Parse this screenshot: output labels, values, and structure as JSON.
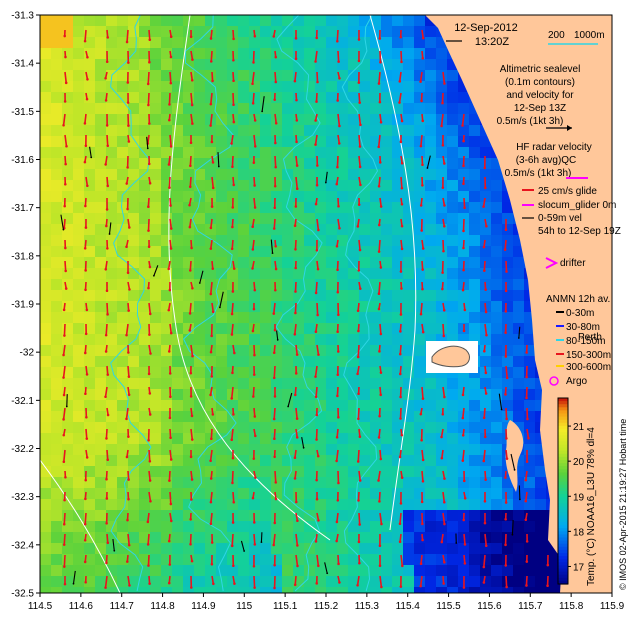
{
  "map": {
    "date": "12-Sep-2012",
    "time": "13:20Z",
    "scale_label": "200",
    "scale_depth_label": "1000m",
    "x_ticks": [
      "114.5",
      "114.6",
      "114.7",
      "114.8",
      "114.9",
      "115",
      "115.1",
      "115.2",
      "115.3",
      "115.4",
      "115.5",
      "115.6",
      "115.7",
      "115.8",
      "115.9"
    ],
    "y_ticks": [
      "-31.3",
      "-31.4",
      "-31.5",
      "-31.6",
      "-31.7",
      "-31.8",
      "-31.9",
      "-32",
      "-32.1",
      "-32.2",
      "-32.3",
      "-32.4",
      "-32.5"
    ],
    "place_label": "Perth",
    "credit": "© IMOS 02-Apr-2015 21:19:27 Hobart time"
  },
  "legend": {
    "altimetric": [
      "Altimetric sealevel",
      "(0.1m contours)",
      "and velocity for",
      "12-Sep 13Z",
      "0.5m/s (1kt 3h)"
    ],
    "hf_radar": [
      "HF radar velocity",
      "(3-6h avg)QC",
      "0.5m/s (1kt 3h)"
    ],
    "glider": [
      "25 cm/s glide",
      "slocum_glider 0m",
      "0-59m vel",
      "54h to 12-Sep 19Z"
    ],
    "drifter": "drifter",
    "anmn_title": "ANMN 12h av.",
    "anmn_depths": [
      "0-30m",
      "30-80m",
      "80-150m",
      "150-300m",
      "300-600m"
    ],
    "argo": "Argo"
  },
  "colorbar": {
    "label": "Temp. (°C) NOAA16_L3U 78% dl=4",
    "ticks": [
      "17",
      "18",
      "19",
      "20",
      "21"
    ],
    "min": 16.5,
    "max": 21.8
  },
  "colors": {
    "land": "#ffc79a",
    "hf_arrow": "#e8141e",
    "alt_arrow": "#000000",
    "contour": "#ffffff",
    "bathy": "#2fd6e6",
    "glider": "#ff00ff",
    "scale_line": "#2fd6e6"
  }
}
